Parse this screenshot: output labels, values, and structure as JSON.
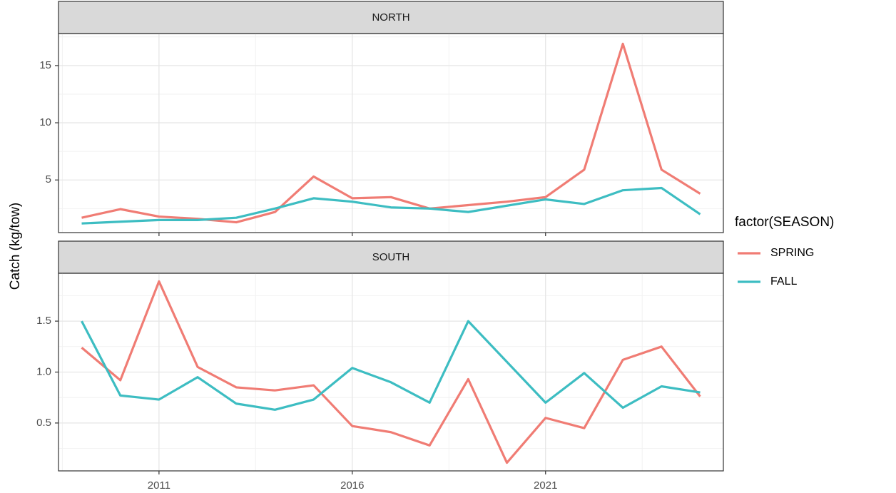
{
  "y_label": "Catch (kg/tow)",
  "legend_title": "factor(SEASON)",
  "chart_data": [
    {
      "type": "line",
      "title": "NORTH",
      "xlim": [
        2008.4,
        2025.6
      ],
      "xticks": [
        2011,
        2016,
        2021
      ],
      "ylim": [
        0.4,
        17.8
      ],
      "yticks": [
        5,
        10,
        15
      ],
      "grid": true,
      "series": [
        {
          "name": "SPRING",
          "color": "#F07C74",
          "x": [
            2009,
            2010,
            2011,
            2012,
            2013,
            2014,
            2015,
            2016,
            2017,
            2018,
            2019,
            2020,
            2021,
            2022,
            2023,
            2024,
            2025
          ],
          "values": [
            1.7,
            2.45,
            1.8,
            1.6,
            1.3,
            2.2,
            5.3,
            3.4,
            3.5,
            2.5,
            2.8,
            3.1,
            3.5,
            5.9,
            16.9,
            5.9,
            3.8
          ]
        },
        {
          "name": "FALL",
          "color": "#3DBDC2",
          "x": [
            2009,
            2010,
            2011,
            2012,
            2013,
            2014,
            2015,
            2016,
            2017,
            2018,
            2019,
            2021,
            2022,
            2023,
            2024,
            2025
          ],
          "values": [
            1.2,
            1.35,
            1.5,
            1.5,
            1.7,
            2.5,
            3.4,
            3.1,
            2.6,
            2.5,
            2.2,
            3.3,
            2.9,
            4.1,
            4.3,
            2.0
          ]
        }
      ]
    },
    {
      "type": "line",
      "title": "SOUTH",
      "xlim": [
        2008.4,
        2025.6
      ],
      "xticks": [
        2011,
        2016,
        2021
      ],
      "ylim": [
        0.03,
        1.97
      ],
      "yticks": [
        {
          "value": 0.5,
          "label": "0.5"
        },
        {
          "value": 1,
          "label": "1.0"
        },
        {
          "value": 1.5,
          "label": "1.5"
        }
      ],
      "grid": true,
      "series": [
        {
          "name": "SPRING",
          "color": "#F07C74",
          "x": [
            2009,
            2010,
            2011,
            2012,
            2013,
            2014,
            2015,
            2016,
            2017,
            2018,
            2019,
            2020,
            2021,
            2022,
            2023,
            2024,
            2025
          ],
          "values": [
            1.24,
            0.92,
            1.89,
            1.05,
            0.85,
            0.82,
            0.87,
            0.47,
            0.41,
            0.28,
            0.93,
            0.11,
            0.55,
            0.45,
            1.12,
            1.25,
            0.76
          ]
        },
        {
          "name": "FALL",
          "color": "#3DBDC2",
          "x": [
            2009,
            2010,
            2011,
            2012,
            2013,
            2014,
            2015,
            2016,
            2017,
            2018,
            2019,
            2021,
            2022,
            2023,
            2024,
            2025
          ],
          "values": [
            1.5,
            0.77,
            0.73,
            0.95,
            0.69,
            0.63,
            0.73,
            1.04,
            0.9,
            0.7,
            1.5,
            0.7,
            0.99,
            0.65,
            0.86,
            0.8
          ]
        }
      ]
    }
  ]
}
